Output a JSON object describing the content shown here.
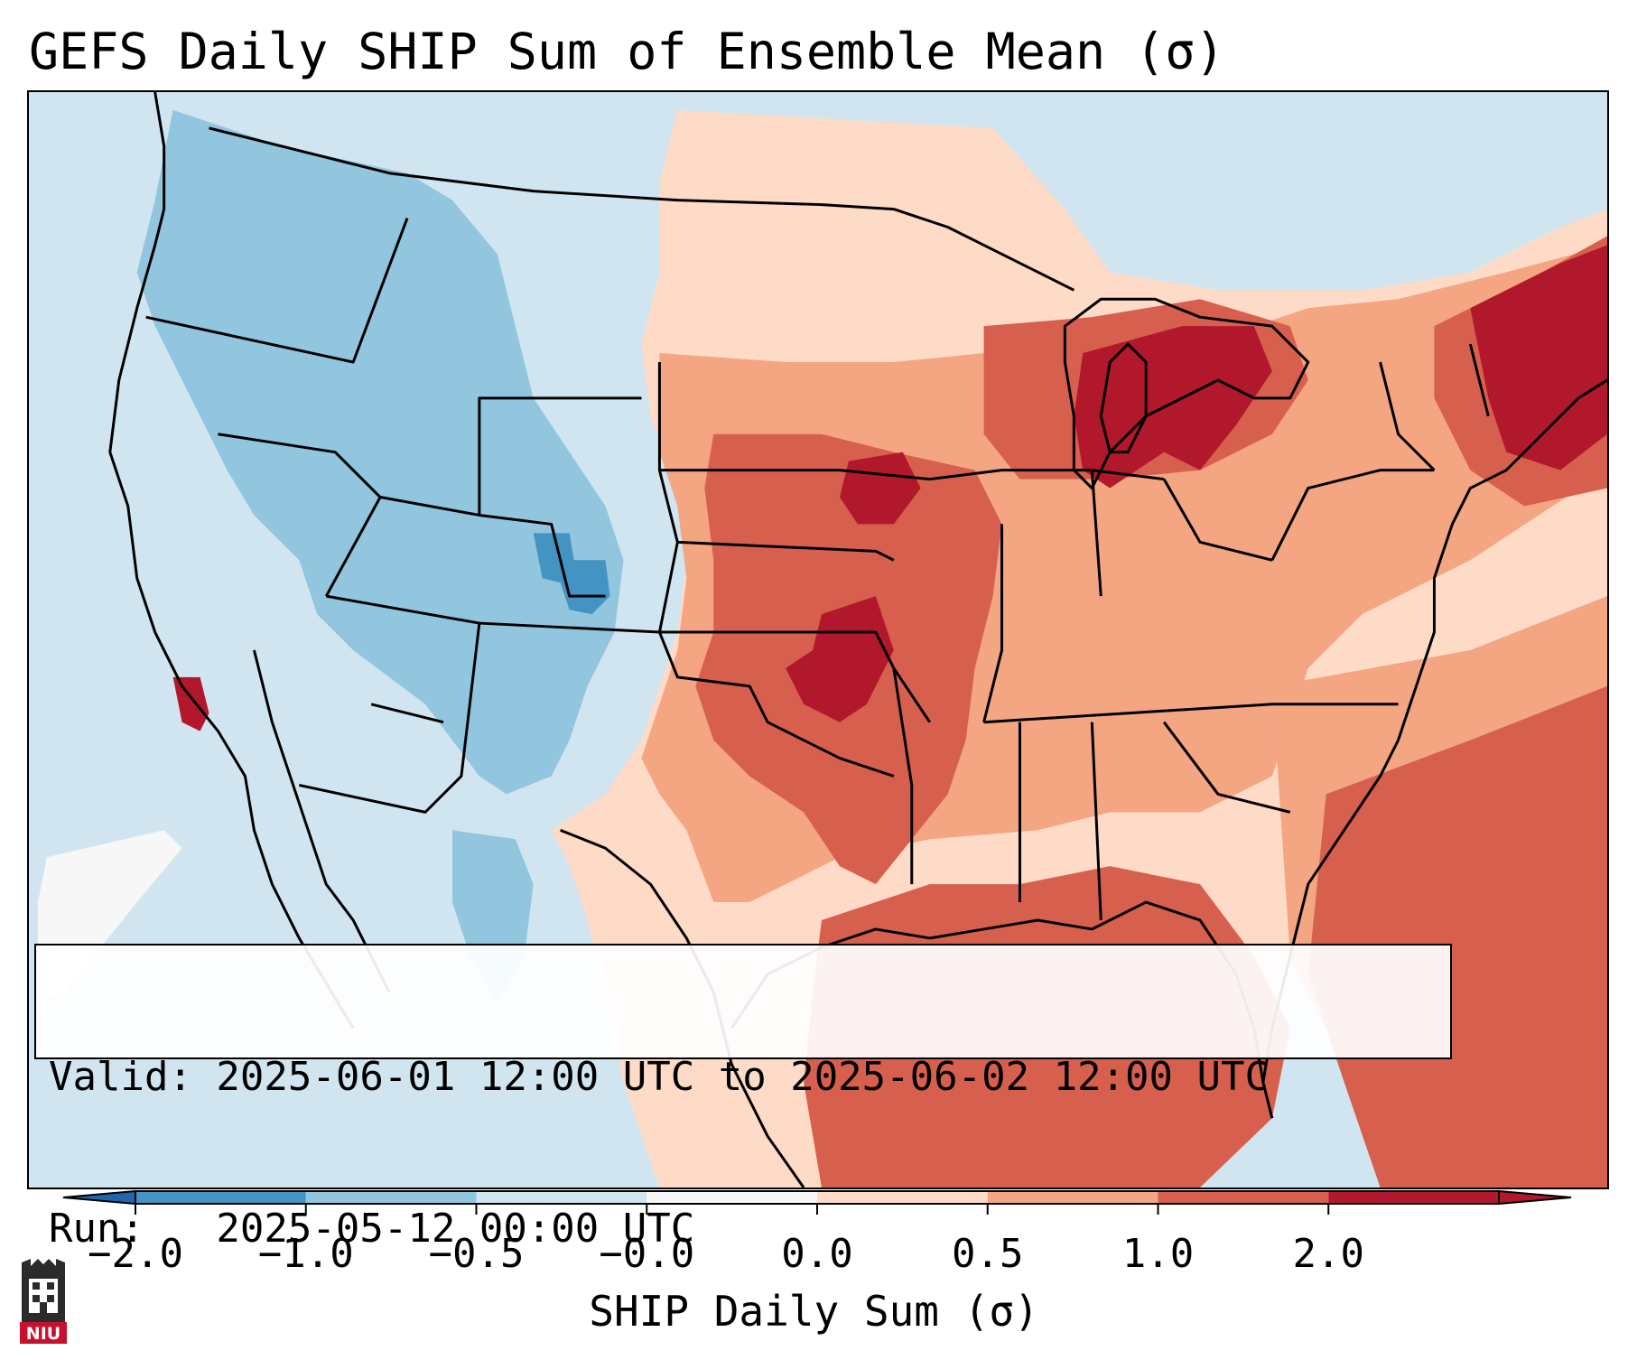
{
  "title": "GEFS Daily SHIP Sum of Ensemble Mean (σ)",
  "info": {
    "valid_line": "Valid: 2025-06-01 12:00 UTC to 2025-06-02 12:00 UTC",
    "run_line": "Run:   2025-05-12 00:00 UTC"
  },
  "colorbar": {
    "label": "SHIP Daily Sum (σ)",
    "ticks": [
      "−2.0",
      "−1.0",
      "−0.5",
      "−0.0",
      "0.0",
      "0.5",
      "1.0",
      "2.0"
    ],
    "colors": [
      "#4393c3",
      "#92c5de",
      "#d1e5f0",
      "#f7f7f7",
      "#fddbc7",
      "#f4a582",
      "#d6604d",
      "#b2182b"
    ],
    "extend_min_color": "#2166ac",
    "extend_max_color": "#b2182b"
  },
  "logo": {
    "text": "NIU",
    "color": "#c8102e"
  }
}
